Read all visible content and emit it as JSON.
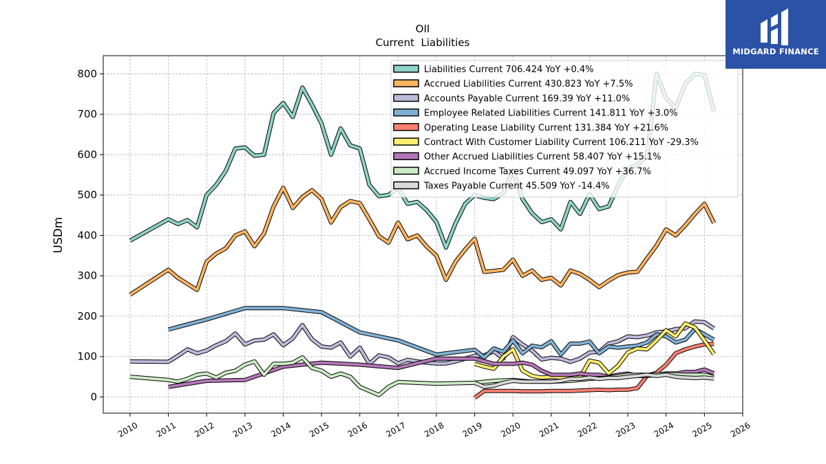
{
  "brand": {
    "name": "MIDGARD FINANCE",
    "bg_color": "#2b52a6"
  },
  "chart_data": {
    "type": "line",
    "title": "OII",
    "subtitle": "Current  Liabilities",
    "ylabel": "USDm",
    "xlabel": "",
    "xlim": [
      2009.3,
      2026
    ],
    "ylim": [
      -40,
      845
    ],
    "x_ticks": [
      "2010",
      "2011",
      "2012",
      "2013",
      "2014",
      "2015",
      "2016",
      "2017",
      "2018",
      "2019",
      "2020",
      "2021",
      "2022",
      "2023",
      "2024",
      "2025",
      "2026"
    ],
    "y_ticks": [
      0,
      100,
      200,
      300,
      400,
      500,
      600,
      700,
      800
    ],
    "grid": true,
    "legend_position": "top-right",
    "series": [
      {
        "name": "Liabilities Current",
        "legend": "Liabilities Current  706.424 YoY +0.4%",
        "color": "#8dd3c7",
        "x": [
          2010,
          2011,
          2011.25,
          2011.5,
          2011.75,
          2012,
          2012.25,
          2012.5,
          2012.75,
          2013,
          2013.25,
          2013.5,
          2013.75,
          2014,
          2014.25,
          2014.5,
          2014.75,
          2015,
          2015.25,
          2015.5,
          2015.75,
          2016,
          2016.25,
          2016.5,
          2016.75,
          2017,
          2017.25,
          2017.5,
          2017.75,
          2018,
          2018.25,
          2018.5,
          2018.75,
          2019,
          2019.25,
          2019.5,
          2019.75,
          2020,
          2020.25,
          2020.5,
          2020.75,
          2021,
          2021.25,
          2021.5,
          2021.75,
          2022,
          2022.25,
          2022.5,
          2022.75,
          2023,
          2023.25,
          2023.5,
          2023.75,
          2024,
          2024.25,
          2024.5,
          2024.75,
          2025,
          2025.25
        ],
        "values": [
          387,
          440,
          428,
          438,
          420,
          500,
          525,
          560,
          615,
          618,
          597,
          600,
          703,
          728,
          693,
          766,
          724,
          677,
          600,
          665,
          623,
          615,
          525,
          497,
          500,
          518,
          478,
          483,
          462,
          433,
          370,
          430,
          478,
          500,
          493,
          490,
          505,
          560,
          490,
          455,
          433,
          440,
          415,
          483,
          453,
          502,
          465,
          472,
          525,
          565,
          575,
          595,
          800,
          740,
          715,
          775,
          800,
          797,
          706.424
        ]
      },
      {
        "name": "Accrued Liabilities Current",
        "legend": "Accrued Liabilities Current  430.823 YoY +7.5%",
        "color": "#fdb462",
        "x": [
          2010,
          2011,
          2011.25,
          2011.5,
          2011.75,
          2012,
          2012.25,
          2012.5,
          2012.75,
          2013,
          2013.25,
          2013.5,
          2013.75,
          2014,
          2014.25,
          2014.5,
          2014.75,
          2015,
          2015.25,
          2015.5,
          2015.75,
          2016,
          2016.25,
          2016.5,
          2016.75,
          2017,
          2017.25,
          2017.5,
          2017.75,
          2018,
          2018.25,
          2018.5,
          2018.75,
          2019,
          2019.25,
          2019.5,
          2019.75,
          2020,
          2020.25,
          2020.5,
          2020.75,
          2021,
          2021.25,
          2021.5,
          2021.75,
          2022,
          2022.25,
          2022.5,
          2022.75,
          2023,
          2023.25,
          2023.5,
          2023.75,
          2024,
          2024.25,
          2024.5,
          2024.75,
          2025,
          2025.25
        ],
        "values": [
          253,
          315,
          295,
          280,
          265,
          335,
          355,
          368,
          400,
          410,
          373,
          405,
          472,
          518,
          468,
          495,
          512,
          490,
          432,
          470,
          485,
          480,
          440,
          398,
          382,
          432,
          390,
          400,
          372,
          350,
          290,
          335,
          365,
          392,
          310,
          312,
          315,
          340,
          300,
          313,
          290,
          295,
          276,
          313,
          305,
          290,
          272,
          288,
          302,
          308,
          310,
          343,
          375,
          415,
          400,
          425,
          453,
          478,
          430.823
        ]
      },
      {
        "name": "Accounts Payable Current",
        "legend": "Accounts Payable Current  169.39 YoY +11.0%",
        "color": "#bebada",
        "x": [
          2010,
          2011,
          2011.25,
          2011.5,
          2011.75,
          2012,
          2012.25,
          2012.5,
          2012.75,
          2013,
          2013.25,
          2013.5,
          2013.75,
          2014,
          2014.25,
          2014.5,
          2014.75,
          2015,
          2015.25,
          2015.5,
          2015.75,
          2016,
          2016.25,
          2016.5,
          2016.75,
          2017,
          2017.25,
          2017.5,
          2017.75,
          2018,
          2018.25,
          2018.5,
          2018.75,
          2019,
          2019.25,
          2019.5,
          2019.75,
          2020,
          2020.25,
          2020.5,
          2020.75,
          2021,
          2021.25,
          2021.5,
          2021.75,
          2022,
          2022.25,
          2022.5,
          2022.75,
          2023,
          2023.25,
          2023.5,
          2023.75,
          2024,
          2024.25,
          2024.5,
          2024.75,
          2025,
          2025.25
        ],
        "values": [
          88,
          87,
          102,
          118,
          108,
          115,
          128,
          138,
          157,
          130,
          140,
          142,
          155,
          128,
          145,
          178,
          143,
          125,
          122,
          135,
          100,
          122,
          82,
          103,
          98,
          83,
          92,
          88,
          85,
          83,
          83,
          88,
          95,
          102,
          103,
          113,
          95,
          148,
          130,
          115,
          93,
          97,
          95,
          87,
          95,
          110,
          112,
          132,
          138,
          150,
          148,
          152,
          160,
          162,
          168,
          170,
          187,
          185,
          169.39
        ]
      },
      {
        "name": "Employee Related Liabilities Current",
        "legend": "Employee Related Liabilities Current  141.811 YoY +3.0%",
        "color": "#80b1d3",
        "x": [
          2011,
          2012,
          2013,
          2014,
          2015,
          2016,
          2017,
          2018,
          2019,
          2019.25,
          2019.5,
          2019.75,
          2020,
          2020.25,
          2020.5,
          2020.75,
          2021,
          2021.25,
          2021.5,
          2021.75,
          2022,
          2022.25,
          2022.5,
          2022.75,
          2023,
          2023.25,
          2023.5,
          2023.75,
          2024,
          2024.25,
          2024.5,
          2024.75,
          2025,
          2025.25
        ],
        "values": [
          167,
          192,
          220,
          220,
          210,
          160,
          140,
          105,
          117,
          98,
          120,
          112,
          140,
          108,
          127,
          123,
          138,
          105,
          132,
          132,
          137,
          108,
          125,
          122,
          125,
          127,
          135,
          155,
          150,
          135,
          142,
          168,
          155,
          141.811
        ]
      },
      {
        "name": "Operating Lease Liability Current",
        "legend": "Operating Lease Liability Current  131.384 YoY +21.6%",
        "color": "#fb8072",
        "x": [
          2019,
          2019.25,
          2019.5,
          2019.75,
          2020,
          2020.25,
          2020.5,
          2020.75,
          2021,
          2021.25,
          2021.5,
          2021.75,
          2022,
          2022.25,
          2022.5,
          2022.75,
          2023,
          2023.25,
          2023.5,
          2023.75,
          2024,
          2024.25,
          2024.5,
          2024.75,
          2025,
          2025.25
        ],
        "values": [
          -2,
          15,
          15,
          15,
          15,
          14,
          14,
          14,
          15,
          15,
          15,
          16,
          17,
          18,
          17,
          18,
          18,
          22,
          52,
          60,
          80,
          108,
          118,
          125,
          130,
          131.384
        ]
      },
      {
        "name": "Contract With Customer Liability Current",
        "legend": "Contract With Customer Liability Current  106.211 YoY -29.3%",
        "color": "#ffed6f",
        "x": [
          2019,
          2019.25,
          2019.5,
          2019.75,
          2020,
          2020.25,
          2020.5,
          2020.75,
          2021,
          2021.25,
          2021.5,
          2021.75,
          2022,
          2022.25,
          2022.5,
          2022.75,
          2023,
          2023.25,
          2023.5,
          2023.75,
          2024,
          2024.25,
          2024.5,
          2024.75,
          2025,
          2025.25
        ],
        "values": [
          82,
          75,
          70,
          100,
          118,
          65,
          52,
          48,
          50,
          48,
          48,
          48,
          90,
          85,
          58,
          78,
          110,
          120,
          118,
          140,
          165,
          150,
          182,
          172,
          140,
          106.211
        ]
      },
      {
        "name": "Other Accrued Liabilities Current",
        "legend": "Other Accrued Liabilities Current  58.407 YoY +15.1%",
        "color": "#b376b8",
        "x": [
          2011,
          2012,
          2013,
          2014,
          2015,
          2016,
          2017,
          2018,
          2019,
          2019.5,
          2020,
          2020.25,
          2020.5,
          2020.75,
          2021,
          2021.25,
          2021.5,
          2021.75,
          2022,
          2022.25,
          2022.5,
          2022.75,
          2023,
          2023.25,
          2023.5,
          2023.75,
          2024,
          2024.25,
          2024.5,
          2024.75,
          2025,
          2025.25
        ],
        "values": [
          25,
          40,
          42,
          75,
          85,
          80,
          72,
          95,
          95,
          82,
          82,
          85,
          80,
          65,
          55,
          55,
          55,
          58,
          55,
          55,
          50,
          55,
          58,
          52,
          52,
          55,
          58,
          58,
          62,
          62,
          68,
          58.407
        ]
      },
      {
        "name": "Accrued Income Taxes Current",
        "legend": "Accrued Income Taxes Current  49.097 YoY +36.7%",
        "color": "#ccebc5",
        "x": [
          2010,
          2011,
          2011.25,
          2011.5,
          2011.75,
          2012,
          2012.25,
          2012.5,
          2012.75,
          2013,
          2013.25,
          2013.5,
          2013.75,
          2014,
          2014.25,
          2014.5,
          2014.75,
          2015,
          2015.25,
          2015.5,
          2015.75,
          2016,
          2016.25,
          2016.5,
          2016.75,
          2017,
          2018,
          2019,
          2019.5,
          2020,
          2020.5,
          2021,
          2021.5,
          2022,
          2022.5,
          2023,
          2023.5,
          2024,
          2024.5,
          2025,
          2025.25
        ],
        "values": [
          50,
          42,
          38,
          45,
          55,
          58,
          48,
          60,
          65,
          80,
          88,
          55,
          82,
          82,
          85,
          98,
          72,
          65,
          50,
          58,
          50,
          25,
          15,
          5,
          25,
          37,
          33,
          35,
          40,
          42,
          38,
          38,
          40,
          45,
          48,
          55,
          55,
          57,
          55,
          55,
          49.097
        ]
      },
      {
        "name": "Taxes Payable Current",
        "legend": "Taxes Payable Current  45.509 YoY -14.4%",
        "color": "#d9d9d9",
        "x": [
          2019,
          2019.25,
          2019.5,
          2019.75,
          2020,
          2020.25,
          2020.5,
          2020.75,
          2021,
          2021.25,
          2021.5,
          2021.75,
          2022,
          2022.25,
          2022.5,
          2022.75,
          2023,
          2023.25,
          2023.5,
          2023.75,
          2024,
          2024.25,
          2024.5,
          2024.75,
          2025,
          2025.25
        ],
        "values": [
          35,
          25,
          28,
          35,
          40,
          38,
          38,
          38,
          38,
          40,
          45,
          45,
          48,
          45,
          47,
          47,
          50,
          52,
          55,
          52,
          55,
          50,
          48,
          47,
          48,
          45.509
        ]
      }
    ]
  }
}
